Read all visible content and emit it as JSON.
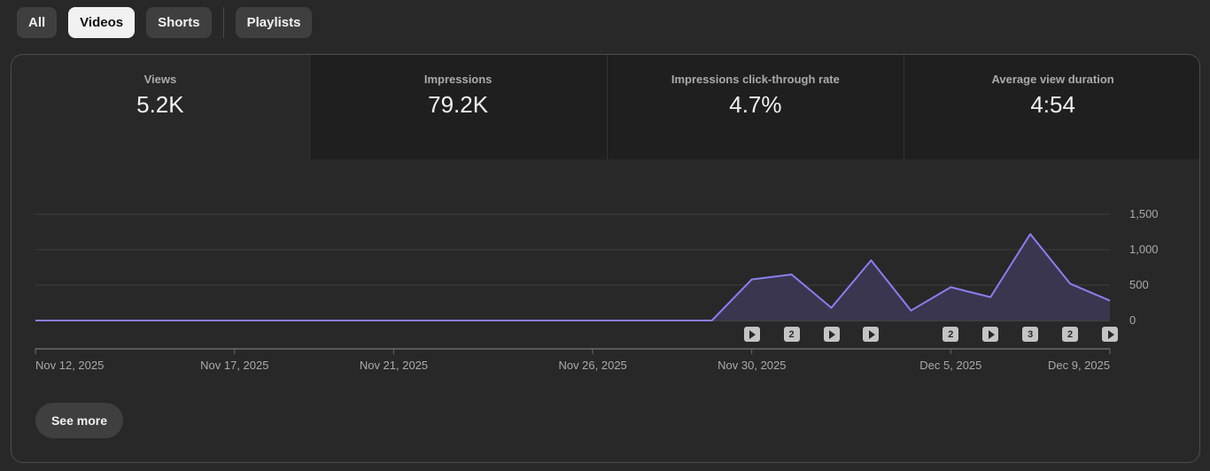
{
  "filters": [
    {
      "label": "All",
      "active": false
    },
    {
      "label": "Videos",
      "active": true
    },
    {
      "label": "Shorts",
      "active": false
    },
    {
      "label": "Playlists",
      "active": false
    }
  ],
  "metrics": [
    {
      "label": "Views",
      "value": "5.2K",
      "active": true
    },
    {
      "label": "Impressions",
      "value": "79.2K",
      "active": false
    },
    {
      "label": "Impressions click-through rate",
      "value": "4.7%",
      "active": false
    },
    {
      "label": "Average view duration",
      "value": "4:54",
      "active": false
    }
  ],
  "chart_data": {
    "type": "area",
    "series": [
      {
        "values": [
          0,
          0,
          0,
          0,
          0,
          0,
          0,
          0,
          0,
          0,
          0,
          0,
          0,
          0,
          0,
          0,
          0,
          0,
          580,
          650,
          180,
          850,
          140,
          470,
          330,
          1220,
          520,
          280
        ]
      }
    ],
    "x": [
      "Nov 12",
      "Nov 13",
      "Nov 14",
      "Nov 15",
      "Nov 16",
      "Nov 17",
      "Nov 18",
      "Nov 19",
      "Nov 20",
      "Nov 21",
      "Nov 22",
      "Nov 23",
      "Nov 24",
      "Nov 25",
      "Nov 26",
      "Nov 27",
      "Nov 28",
      "Nov 29",
      "Nov 30",
      "Dec 1",
      "Dec 2",
      "Dec 3",
      "Dec 4",
      "Dec 5",
      "Dec 6",
      "Dec 7",
      "Dec 8",
      "Dec 9"
    ],
    "x_tick_labels": [
      "Nov 12, 2025",
      "Nov 17, 2025",
      "Nov 21, 2025",
      "Nov 26, 2025",
      "Nov 30, 2025",
      "Dec 5, 2025",
      "Dec 9, 2025"
    ],
    "x_tick_index": [
      0,
      5,
      9,
      14,
      18,
      23,
      27
    ],
    "y_ticks": [
      "1,500",
      "1,000",
      "500",
      "0"
    ],
    "y_tick_values": [
      1500,
      1000,
      500,
      0
    ],
    "ylim": [
      0,
      1500
    ],
    "grid": true,
    "line_color": "#8a7ff0",
    "fill_color": "#3a3650",
    "markers": [
      {
        "index": 18,
        "kind": "video"
      },
      {
        "index": 19,
        "kind": "count",
        "label": "2"
      },
      {
        "index": 20,
        "kind": "video"
      },
      {
        "index": 21,
        "kind": "video"
      },
      {
        "index": 23,
        "kind": "count",
        "label": "2"
      },
      {
        "index": 24,
        "kind": "video"
      },
      {
        "index": 25,
        "kind": "count",
        "label": "3"
      },
      {
        "index": 26,
        "kind": "count",
        "label": "2"
      },
      {
        "index": 27,
        "kind": "video"
      }
    ]
  },
  "see_more_label": "See more"
}
